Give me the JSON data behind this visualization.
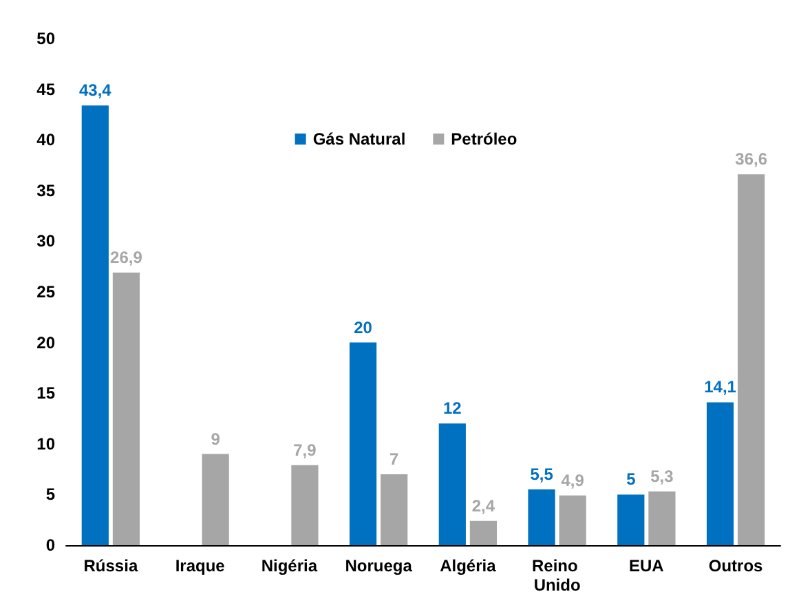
{
  "chart_data": {
    "type": "bar",
    "categories": [
      "Rússia",
      "Iraque",
      "Nigéria",
      "Noruega",
      "Algéria",
      "Reino Unido",
      "EUA",
      "Outros"
    ],
    "series": [
      {
        "name": "Gás Natural",
        "color": "#0070c0",
        "values": [
          43.4,
          null,
          null,
          20,
          12,
          5.5,
          5,
          14.1
        ],
        "value_labels": [
          "43,4",
          null,
          null,
          "20",
          "12",
          "5,5",
          "5",
          "14,1"
        ]
      },
      {
        "name": "Petróleo",
        "color": "#a6a6a6",
        "values": [
          26.9,
          9,
          7.9,
          7,
          2.4,
          4.9,
          5.3,
          36.6
        ],
        "value_labels": [
          "26,9",
          "9",
          "7,9",
          "7",
          "2,4",
          "4,9",
          "5,3",
          "36,6"
        ]
      }
    ],
    "ylim": [
      0,
      50
    ],
    "yticks": [
      0,
      5,
      10,
      15,
      20,
      25,
      30,
      35,
      40,
      45,
      50
    ],
    "grid": false,
    "legend": "top"
  }
}
